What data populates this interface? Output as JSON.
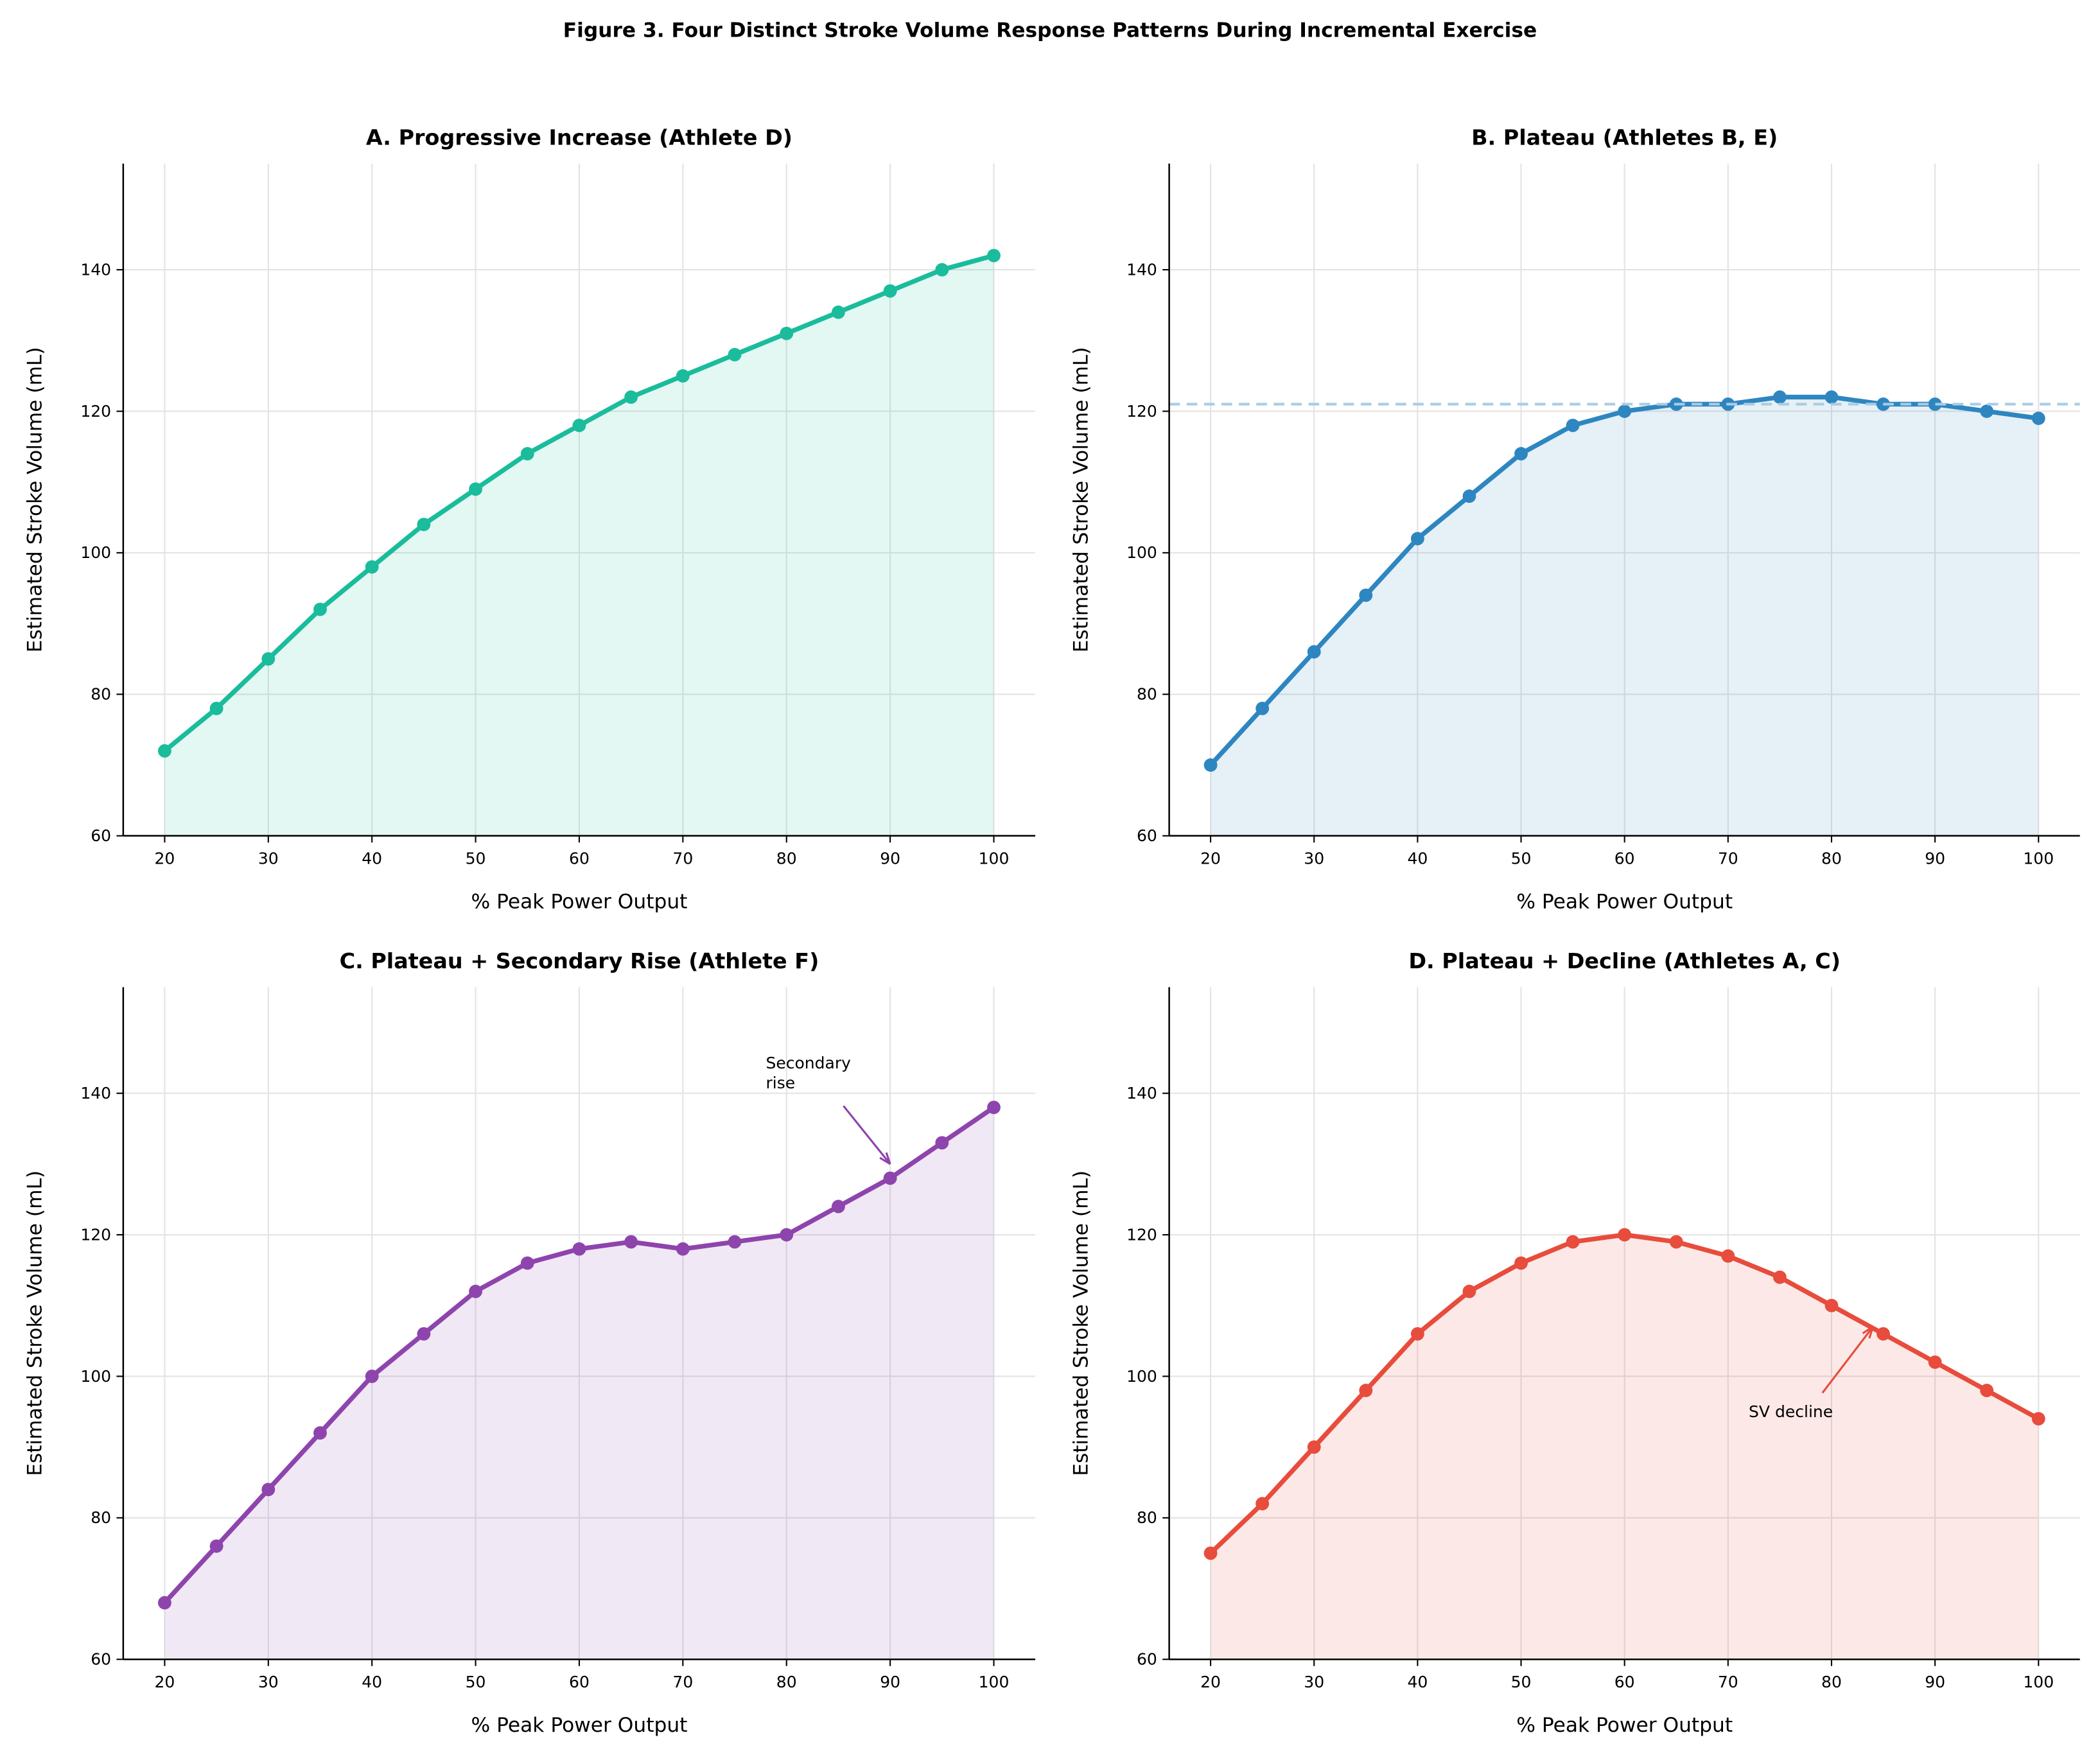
{
  "title": "Figure 3. Four Distinct Stroke Volume Response Patterns During Incremental Exercise",
  "chart_data": [
    {
      "type": "line",
      "title": "A. Progressive Increase (Athlete D)",
      "xlabel": "% Peak Power Output",
      "ylabel": "Estimated Stroke Volume (mL)",
      "x": [
        20,
        25,
        30,
        35,
        40,
        45,
        50,
        55,
        60,
        65,
        70,
        75,
        80,
        85,
        90,
        95,
        100
      ],
      "values": [
        72,
        78,
        85,
        92,
        98,
        104,
        109,
        114,
        118,
        122,
        125,
        128,
        131,
        134,
        137,
        140,
        142
      ],
      "color": "#1abc9c",
      "xlim": [
        16,
        104
      ],
      "ylim": [
        60,
        155
      ],
      "xticks": [
        20,
        30,
        40,
        50,
        60,
        70,
        80,
        90,
        100
      ],
      "yticks": [
        60,
        80,
        100,
        120,
        140
      ],
      "grid": true
    },
    {
      "type": "line",
      "title": "B. Plateau (Athletes B, E)",
      "xlabel": "% Peak Power Output",
      "ylabel": "Estimated Stroke Volume (mL)",
      "x": [
        20,
        25,
        30,
        35,
        40,
        45,
        50,
        55,
        60,
        65,
        70,
        75,
        80,
        85,
        90,
        95,
        100
      ],
      "values": [
        70,
        78,
        86,
        94,
        102,
        108,
        114,
        118,
        120,
        121,
        121,
        122,
        122,
        121,
        121,
        120,
        119
      ],
      "color": "#2e86c1",
      "hline": 121,
      "hline_color": "#a9cce3",
      "xlim": [
        16,
        104
      ],
      "ylim": [
        60,
        155
      ],
      "xticks": [
        20,
        30,
        40,
        50,
        60,
        70,
        80,
        90,
        100
      ],
      "yticks": [
        60,
        80,
        100,
        120,
        140
      ],
      "grid": true
    },
    {
      "type": "line",
      "title": "C. Plateau + Secondary Rise (Athlete F)",
      "xlabel": "% Peak Power Output",
      "ylabel": "Estimated Stroke Volume (mL)",
      "x": [
        20,
        25,
        30,
        35,
        40,
        45,
        50,
        55,
        60,
        65,
        70,
        75,
        80,
        85,
        90,
        95,
        100
      ],
      "values": [
        68,
        76,
        84,
        92,
        100,
        106,
        112,
        116,
        118,
        119,
        118,
        119,
        120,
        124,
        128,
        133,
        138
      ],
      "color": "#8e44ad",
      "annotation": {
        "text": "Secondary\nrise",
        "xy": [
          90,
          130
        ],
        "xytext": [
          78,
          142
        ]
      },
      "xlim": [
        16,
        104
      ],
      "ylim": [
        60,
        155
      ],
      "xticks": [
        20,
        30,
        40,
        50,
        60,
        70,
        80,
        90,
        100
      ],
      "yticks": [
        60,
        80,
        100,
        120,
        140
      ],
      "grid": true
    },
    {
      "type": "line",
      "title": "D. Plateau + Decline (Athletes A, C)",
      "xlabel": "% Peak Power Output",
      "ylabel": "Estimated Stroke Volume (mL)",
      "x": [
        20,
        25,
        30,
        35,
        40,
        45,
        50,
        55,
        60,
        65,
        70,
        75,
        80,
        85,
        90,
        95,
        100
      ],
      "values": [
        75,
        82,
        90,
        98,
        106,
        112,
        116,
        119,
        120,
        119,
        117,
        114,
        110,
        106,
        102,
        98,
        94
      ],
      "color": "#e74c3c",
      "annotation": {
        "text": "SV decline",
        "xy": [
          84,
          107
        ],
        "xytext": [
          72,
          95
        ]
      },
      "xlim": [
        16,
        104
      ],
      "ylim": [
        60,
        155
      ],
      "xticks": [
        20,
        30,
        40,
        50,
        60,
        70,
        80,
        90,
        100
      ],
      "yticks": [
        60,
        80,
        100,
        120,
        140
      ],
      "grid": true
    }
  ]
}
